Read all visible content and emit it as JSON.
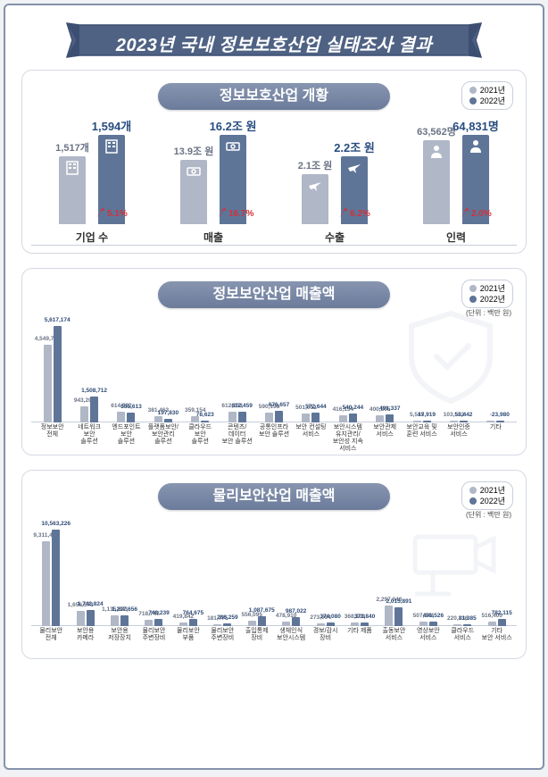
{
  "colors": {
    "year2021": "#b0b7c6",
    "year2022": "#5e7598",
    "banner": "#4f6284",
    "page_border": "#8492aa",
    "accent_red": "#d1323a"
  },
  "title": "2023년 국내 정보보호산업 실태조사 결과",
  "legend": {
    "y2021": "2021년",
    "y2022": "2022년"
  },
  "overview": {
    "heading": "정보보호산업 개황",
    "items": [
      {
        "category": "기업 수",
        "val2021": "1,517개",
        "val2022": "1,594개",
        "growth": "5.1%",
        "icon": "building",
        "h2021": 76,
        "h2022": 100
      },
      {
        "category": "매출",
        "val2021": "13.9조 원",
        "val2022": "16.2조 원",
        "growth": "16.7%",
        "icon": "money",
        "h2021": 72,
        "h2022": 100
      },
      {
        "category": "수출",
        "val2021": "2.1조 원",
        "val2022": "2.2조 원",
        "growth": "6.2%",
        "icon": "plane",
        "h2021": 56,
        "h2022": 76
      },
      {
        "category": "인력",
        "val2021": "63,562명",
        "val2022": "64,831명",
        "growth": "2.0%",
        "icon": "person",
        "h2021": 94,
        "h2022": 100
      }
    ]
  },
  "chart_info": {
    "heading": "정보보안산업 매출액",
    "unit": "(단위 : 백만 원)",
    "max": 5617174,
    "categories": [
      {
        "label": "정보보안\n전체",
        "v1": 4549734,
        "v2": 5617174
      },
      {
        "label": "네트워크\n보안\n솔루션",
        "v1": 943201,
        "v2": 1508712
      },
      {
        "label": "엔드포인트\n보안\n솔루션",
        "v1": 614592,
        "v2": 555613
      },
      {
        "label": "플랫폼보안/\n보안관리\n솔루션",
        "v1": 381463,
        "v2": 197830
      },
      {
        "label": "클라우드\n보안\n솔루션",
        "v1": 359154,
        "v2": 78623
      },
      {
        "label": "콘텐츠/\n데이터\n보안 솔루션",
        "v1": 612153,
        "v2": 612459
      },
      {
        "label": "공통인프라\n보안 솔루션",
        "v1": 590198,
        "v2": 676657
      },
      {
        "label": "보안 컨설팅\n서비스",
        "v1": 501012,
        "v2": 572644
      },
      {
        "label": "보안시스템\n유지관리/\n보안성 지속\n서비스",
        "v1": 416134,
        "v2": 540244
      },
      {
        "label": "보안관제\n서비스",
        "v1": 400205,
        "v2": 491337
      },
      {
        "label": "보안교육 및\n훈련 서비스",
        "v1": 5545,
        "v2": 17919
      },
      {
        "label": "보안인증\n서비스",
        "v1": 103582,
        "v2": 53442
      },
      {
        "label": "기타",
        "v1": 0,
        "v2": 23980
      }
    ]
  },
  "chart_phys": {
    "heading": "물리보안산업 매출액",
    "unit": "(단위 : 백만 원)",
    "max": 10563226,
    "categories": [
      {
        "label": "물리보안\n전체",
        "v1": 9311446,
        "v2": 10563226
      },
      {
        "label": "보안용\n카메라",
        "v1": 1656573,
        "v2": 1742824
      },
      {
        "label": "보안용\n저장장치",
        "v1": 1135883,
        "v2": 1207656
      },
      {
        "label": "물리보안\n주변장비",
        "v1": 718747,
        "v2": 748239
      },
      {
        "label": "물리보안\n부품",
        "v1": 419842,
        "v2": 764675
      },
      {
        "label": "물리보안\n주변장비",
        "v1": 181775,
        "v2": 286259
      },
      {
        "label": "출입통제\n장비",
        "v1": 556095,
        "v2": 1087675
      },
      {
        "label": "생체인식\n보안시스템",
        "v1": 478910,
        "v2": 987022
      },
      {
        "label": "경보/감시\n장비",
        "v1": 273094,
        "v2": 374080
      },
      {
        "label": "기타 제품",
        "v1": 368103,
        "v2": 373840
      },
      {
        "label": "출동보안\n서비스",
        "v1": 2297048,
        "v2": 2015891
      },
      {
        "label": "영상보안\n서비스",
        "v1": 507544,
        "v2": 491526
      },
      {
        "label": "클라우드\n서비스",
        "v1": 220836,
        "v2": 31385
      },
      {
        "label": "기타\n보안 서비스",
        "v1": 516400,
        "v2": 782115
      }
    ]
  }
}
